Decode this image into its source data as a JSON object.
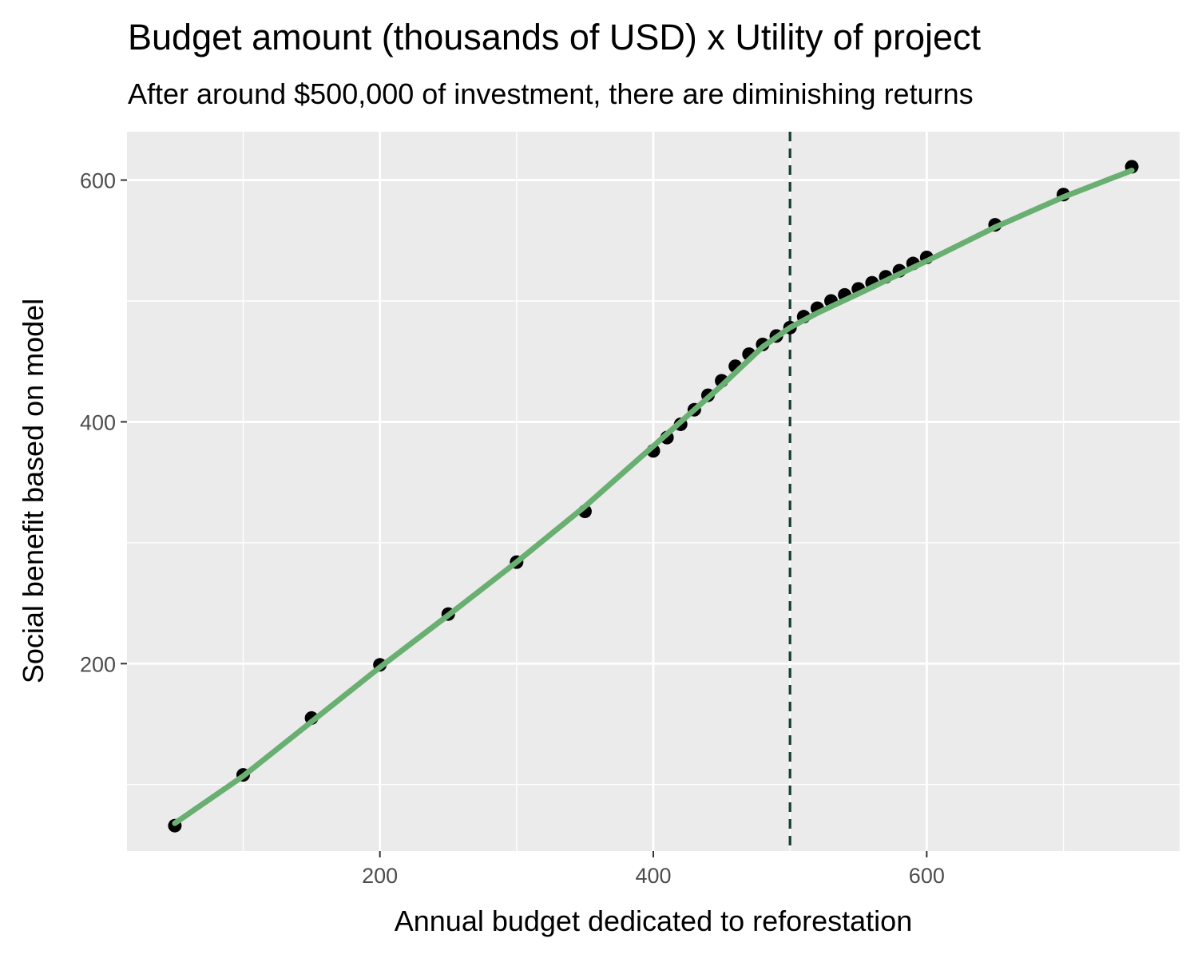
{
  "chart_data": {
    "type": "scatter",
    "title": "Budget amount (thousands of USD) x Utility of project",
    "subtitle": "After around $500,000 of investment, there are diminishing returns",
    "xlabel": "Annual budget dedicated to reforestation",
    "ylabel": "Social benefit based on model",
    "xlim": [
      15,
      785
    ],
    "ylim": [
      45,
      640
    ],
    "x_ticks": [
      200,
      400,
      600
    ],
    "x_minor_ticks": [
      100,
      300,
      500,
      700
    ],
    "y_ticks": [
      200,
      400,
      600
    ],
    "y_minor_ticks": [
      100,
      300,
      500
    ],
    "grid": true,
    "panel_color": "#ebebeb",
    "point_color": "#000000",
    "smooth_color": "#6aaf72",
    "vline": {
      "x": 500,
      "style": "dashed",
      "color": "#173d2d"
    },
    "points": {
      "x": [
        50,
        100,
        150,
        200,
        250,
        300,
        350,
        400,
        410,
        420,
        430,
        440,
        450,
        460,
        470,
        480,
        490,
        500,
        510,
        520,
        530,
        540,
        550,
        560,
        570,
        580,
        590,
        600,
        650,
        700,
        750
      ],
      "y": [
        66,
        108,
        155,
        199,
        241,
        284,
        326,
        376,
        387,
        398,
        410,
        422,
        434,
        446,
        456,
        464,
        471,
        478,
        487,
        494,
        500,
        505,
        510,
        515,
        520,
        525,
        531,
        536,
        563,
        588,
        611
      ]
    },
    "smooth_line": {
      "x": [
        50,
        100,
        150,
        200,
        250,
        300,
        350,
        400,
        450,
        480,
        500,
        520,
        550,
        600,
        650,
        700,
        750
      ],
      "y": [
        68,
        107,
        152,
        197,
        240,
        284,
        330,
        380,
        430,
        462,
        478,
        490,
        506,
        533,
        561,
        586,
        608
      ]
    }
  }
}
